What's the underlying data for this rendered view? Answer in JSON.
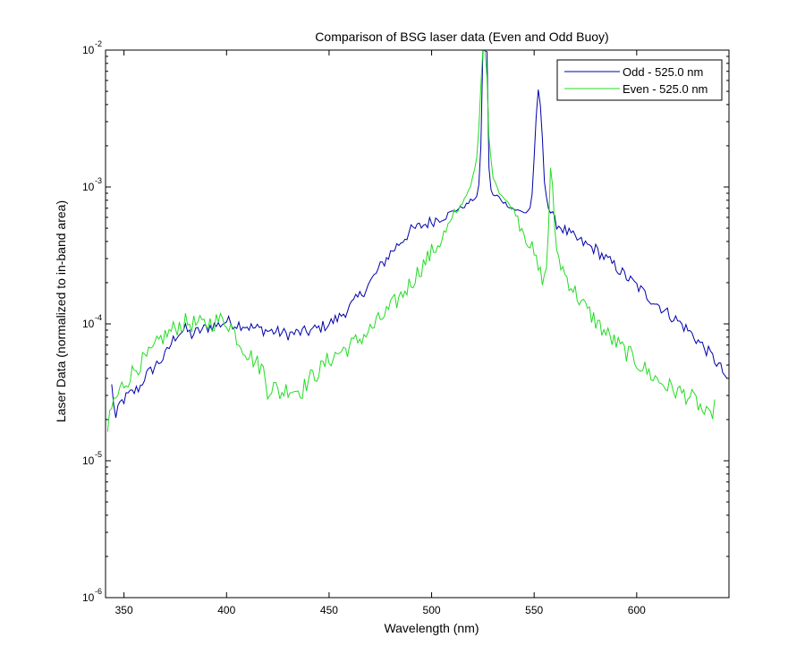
{
  "chart_data": {
    "type": "line",
    "title": "Comparison of BSG laser data (Even and Odd Buoy)",
    "xlabel": "Wavelength (nm)",
    "ylabel": "Laser Data (normalized to in-band area)",
    "xlim": [
      341,
      645
    ],
    "ylim": [
      1e-06,
      0.01
    ],
    "yscale": "log",
    "grid": false,
    "legend_position": "top-right",
    "x_ticks": [
      350,
      400,
      450,
      500,
      550,
      600
    ],
    "x_tick_labels": [
      "350",
      "400",
      "450",
      "500",
      "550",
      "600"
    ],
    "y_ticks": [
      1e-06,
      1e-05,
      0.0001,
      0.001,
      0.01
    ],
    "y_tick_labels": [
      {
        "base": "10",
        "exp": "-6"
      },
      {
        "base": "10",
        "exp": "-5"
      },
      {
        "base": "10",
        "exp": "-4"
      },
      {
        "base": "10",
        "exp": "-3"
      },
      {
        "base": "10",
        "exp": "-2"
      }
    ],
    "series": [
      {
        "name": "Odd - 525.0 nm",
        "color": "#0000aa",
        "x": [
          344,
          346,
          348,
          350,
          352,
          355,
          358,
          360,
          363,
          366,
          370,
          373,
          376,
          380,
          383,
          386,
          390,
          393,
          396,
          400,
          404,
          408,
          412,
          416,
          420,
          425,
          430,
          435,
          440,
          445,
          450,
          455,
          460,
          465,
          470,
          475,
          480,
          485,
          490,
          495,
          500,
          505,
          510,
          514,
          517,
          519,
          521,
          522,
          523,
          524,
          525,
          526,
          527,
          528,
          529,
          530,
          532,
          535,
          538,
          541,
          544,
          546,
          548,
          549,
          550,
          551,
          552,
          553,
          554,
          555,
          557,
          560,
          565,
          570,
          575,
          580,
          585,
          590,
          595,
          600,
          605,
          610,
          615,
          620,
          625,
          630,
          635,
          640,
          644
        ],
        "y": [
          3.5e-05,
          2e-05,
          2.6e-05,
          2.8e-05,
          3e-05,
          3.2e-05,
          3.5e-05,
          4.1e-05,
          4.5e-05,
          5.1e-05,
          5.8e-05,
          7.2e-05,
          8.5e-05,
          9.1e-05,
          8.3e-05,
          8.8e-05,
          9.3e-05,
          9.7e-05,
          9.8e-05,
          0.000105,
          0.0001,
          9.9e-05,
          9.4e-05,
          9.2e-05,
          8.9e-05,
          8.7e-05,
          8.4e-05,
          8.6e-05,
          8.8e-05,
          9.3e-05,
          0.0001,
          0.000112,
          0.000132,
          0.00016,
          0.0002,
          0.00026,
          0.00033,
          0.0004,
          0.00048,
          0.00052,
          0.00056,
          0.00061,
          0.00066,
          0.0007,
          0.00074,
          0.00079,
          0.00083,
          0.00085,
          0.001,
          0.002,
          0.01,
          0.01,
          0.0095,
          0.0014,
          0.00095,
          0.00086,
          0.00086,
          0.00078,
          0.00072,
          0.00068,
          0.00066,
          0.00065,
          0.0007,
          0.0009,
          0.0016,
          0.0032,
          0.0051,
          0.004,
          0.0022,
          0.0011,
          0.0007,
          0.00056,
          0.00048,
          0.00042,
          0.00038,
          0.00035,
          0.0003,
          0.00026,
          0.00022,
          0.00019,
          0.00016,
          0.00014,
          0.00012,
          0.000105,
          9e-05,
          7.5e-05,
          6.2e-05,
          5e-05,
          4e-05
        ]
      },
      {
        "name": "Even - 525.0 nm",
        "color": "#22dd22",
        "x": [
          342,
          343,
          345,
          347,
          349,
          351,
          353,
          356,
          359,
          362,
          365,
          368,
          372,
          376,
          380,
          384,
          388,
          392,
          396,
          400,
          403,
          406,
          410,
          414,
          418,
          420,
          423,
          426,
          430,
          434,
          437,
          440,
          445,
          450,
          455,
          460,
          465,
          470,
          475,
          480,
          485,
          490,
          495,
          500,
          505,
          510,
          513,
          516,
          518,
          520,
          522,
          523,
          524,
          525,
          526,
          527,
          528,
          530,
          533,
          536,
          540,
          544,
          548,
          551,
          553,
          555,
          556,
          557,
          558,
          559,
          560,
          562,
          565,
          570,
          575,
          580,
          585,
          590,
          595,
          600,
          605,
          610,
          615,
          620,
          625,
          630,
          633,
          636,
          638
        ],
        "y": [
          1.4e-05,
          2.2e-05,
          2.7e-05,
          3e-05,
          3.5e-05,
          3.8e-05,
          4.2e-05,
          4.8e-05,
          5.3e-05,
          5.8e-05,
          6.6e-05,
          7.8e-05,
          8.6e-05,
          9.6e-05,
          0.000102,
          0.0001,
          9.8e-05,
          0.000102,
          0.000106,
          0.000105,
          9.2e-05,
          7.5e-05,
          6.2e-05,
          5.3e-05,
          4.6e-05,
          3.3e-05,
          3.5e-05,
          3.1e-05,
          3.4e-05,
          3.3e-05,
          3.3e-05,
          3.9e-05,
          4.5e-05,
          5.5e-05,
          6.2e-05,
          6.8e-05,
          7.8e-05,
          9e-05,
          0.000108,
          0.00013,
          0.00016,
          0.0002,
          0.00026,
          0.00033,
          0.00042,
          0.00056,
          0.00068,
          0.00082,
          0.00095,
          0.00115,
          0.0016,
          0.0026,
          0.0055,
          0.01,
          0.01,
          0.0065,
          0.0022,
          0.0012,
          0.00092,
          0.0008,
          0.00068,
          0.00052,
          0.00038,
          0.00028,
          0.00023,
          0.00021,
          0.00026,
          0.0005,
          0.0014,
          0.001,
          0.00045,
          0.0003,
          0.00023,
          0.00017,
          0.00013,
          0.000105,
          8.5e-05,
          7.2e-05,
          6.2e-05,
          5.3e-05,
          4.5e-05,
          3.9e-05,
          3.5e-05,
          3.2e-05,
          3e-05,
          2.6e-05,
          2.2e-05,
          2e-05,
          2.8e-05
        ]
      }
    ]
  }
}
